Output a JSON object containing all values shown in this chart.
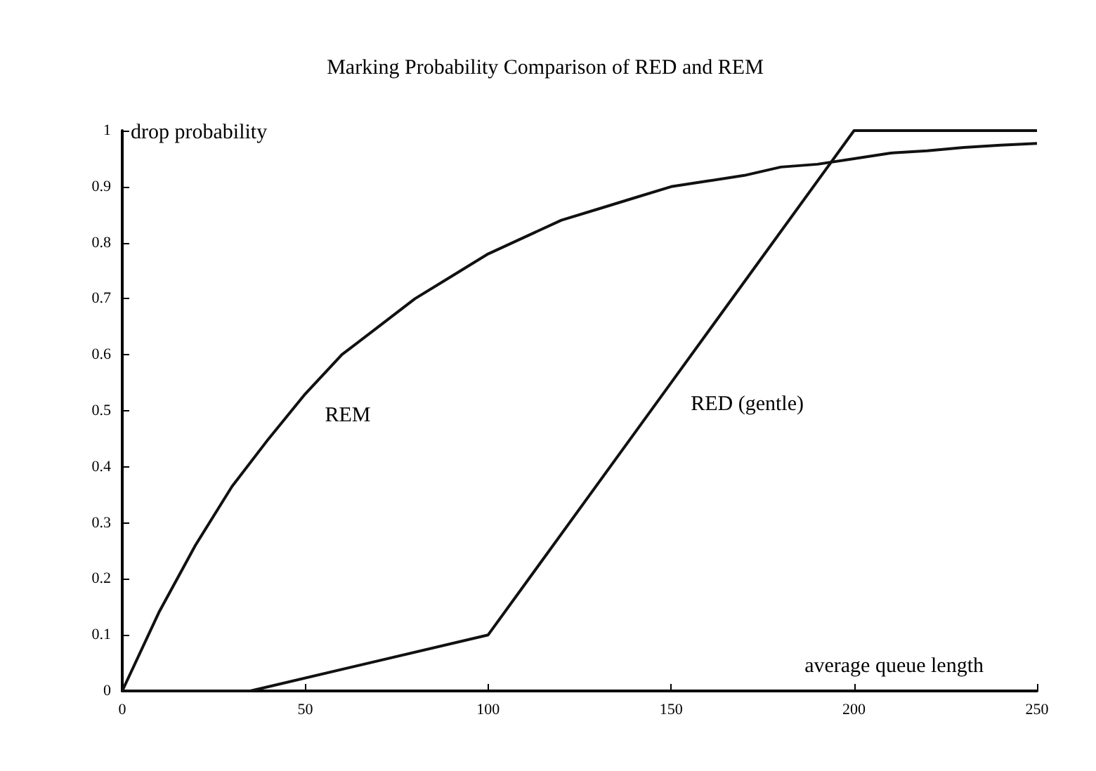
{
  "chart_data": {
    "type": "line",
    "title": "Marking Probability Comparison of RED and REM",
    "xlabel": "average queue length",
    "ylabel": "drop probability",
    "xlim": [
      0,
      250
    ],
    "xticks": [
      0,
      50,
      100,
      150,
      200,
      250
    ],
    "ylim": [
      0,
      1
    ],
    "yticks": [
      0,
      0.1,
      0.2,
      0.3,
      0.4,
      0.5,
      0.6,
      0.7,
      0.8,
      0.9,
      1
    ],
    "grid": false,
    "legend": false,
    "marker": "none",
    "line_style": "solid",
    "series": [
      {
        "name": "REM",
        "color": "#111111",
        "x": [
          0,
          10,
          20,
          30,
          40,
          50,
          60,
          70,
          80,
          90,
          100,
          110,
          120,
          130,
          140,
          150,
          160,
          170,
          180,
          190,
          200,
          210,
          220,
          230,
          240,
          250
        ],
        "values": [
          0,
          0.14,
          0.26,
          0.365,
          0.45,
          0.53,
          0.6,
          0.65,
          0.7,
          0.74,
          0.78,
          0.81,
          0.84,
          0.86,
          0.88,
          0.9,
          0.91,
          0.92,
          0.935,
          0.94,
          0.95,
          0.96,
          0.964,
          0.97,
          0.974,
          0.977
        ]
      },
      {
        "name": "RED (gentle)",
        "color": "#111111",
        "x": [
          0,
          35,
          100,
          150,
          200,
          250
        ],
        "values": [
          0,
          0,
          0.1,
          0.55,
          1,
          1
        ]
      }
    ]
  }
}
